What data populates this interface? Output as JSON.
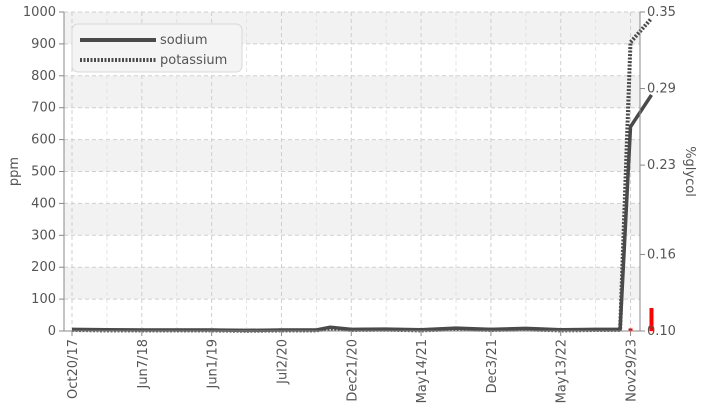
{
  "chart_data": {
    "type": "line",
    "x_tick_labels": [
      "Oct20/17",
      "Jun7/18",
      "Jun1/19",
      "Jul2/20",
      "Dec21/20",
      "May14/21",
      "Dec3/21",
      "May13/22",
      "Nov29/23"
    ],
    "y_left": {
      "label": "ppm",
      "ticks": [
        "0",
        "100",
        "200",
        "300",
        "400",
        "500",
        "600",
        "700",
        "800",
        "900",
        "1000"
      ],
      "range": [
        0,
        1000
      ]
    },
    "y_right": {
      "label": "%glycol",
      "ticks": [
        "0.10",
        "0.16",
        "0.23",
        "0.29",
        "0.35"
      ],
      "range": [
        0.1,
        0.35
      ]
    },
    "grid": true,
    "legend_position": "top-left",
    "series": [
      {
        "name": "sodium",
        "axis": "left",
        "style": "solid",
        "color": "#4a4a4a",
        "x": [
          0,
          0.5,
          1,
          1.5,
          2,
          2.5,
          3,
          3.5,
          3.7,
          4,
          4.5,
          5,
          5.5,
          6,
          6.5,
          7,
          7.5,
          7.85,
          8,
          8.3
        ],
        "y": [
          5,
          4,
          3,
          3,
          3,
          2,
          3,
          3,
          12,
          5,
          6,
          4,
          9,
          5,
          8,
          4,
          5,
          5,
          640,
          740
        ]
      },
      {
        "name": "potassium",
        "axis": "left",
        "style": "dotted",
        "color": "#4a4a4a",
        "x": [
          0,
          0.5,
          1,
          1.5,
          2,
          2.5,
          3,
          3.5,
          3.7,
          4,
          4.5,
          5,
          5.5,
          6,
          6.5,
          7,
          7.5,
          7.85,
          8,
          8.3
        ],
        "y": [
          3,
          2,
          2,
          2,
          2,
          1,
          2,
          2,
          8,
          3,
          4,
          2,
          6,
          3,
          5,
          2,
          3,
          3,
          905,
          980
        ]
      },
      {
        "name": "glycol",
        "axis": "right",
        "style": "bar",
        "color": "#ff0000",
        "x": [
          8,
          8.3
        ],
        "y": [
          0.102,
          0.118
        ]
      }
    ]
  }
}
